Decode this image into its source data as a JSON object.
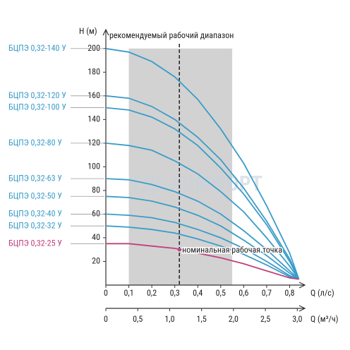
{
  "chart_data": {
    "type": "line",
    "y_label": "H (м)",
    "x_label": "Q (л/с)",
    "x2_label": "Q (м³/ч)",
    "range_label": "рекомендуемый рабочий диапазон",
    "range": [
      0.1,
      0.55
    ],
    "range_color": "#d2d2d2",
    "nominal": {
      "x": 0.32,
      "y": 30,
      "label": "номинальная рабочая точка"
    },
    "watermark": "ГДЕ КОМФОРТ",
    "x": [
      0,
      0.1,
      0.2,
      0.3,
      0.4,
      0.5,
      0.6,
      0.7,
      0.8,
      0.84
    ],
    "series": [
      {
        "name": "БЦПЭ 0,32-140 У",
        "color": "#3a9cc9",
        "values": [
          200,
          197,
          189,
          176,
          157,
          132,
          103,
          67,
          27,
          5
        ]
      },
      {
        "name": "БЦПЭ 0,32-120 У",
        "color": "#3a9cc9",
        "values": [
          160,
          158,
          151,
          140,
          125,
          106,
          82,
          54,
          22,
          5
        ]
      },
      {
        "name": "БЦПЭ 0,32-100 У",
        "color": "#3a9cc9",
        "values": [
          150,
          148,
          142,
          132,
          118,
          99,
          77,
          51,
          20,
          5
        ]
      },
      {
        "name": "БЦПЭ 0,32-80 У",
        "color": "#3a9cc9",
        "values": [
          120,
          118,
          114,
          105,
          94,
          79,
          62,
          40,
          16,
          5
        ]
      },
      {
        "name": "БЦПЭ 0,32-63 У",
        "color": "#3a9cc9",
        "values": [
          90,
          89,
          85,
          79,
          71,
          60,
          46,
          30,
          12,
          5
        ]
      },
      {
        "name": "БЦПЭ 0,32-50 У",
        "color": "#3a9cc9",
        "values": [
          75,
          74,
          71,
          66,
          59,
          50,
          38,
          25,
          10,
          5
        ]
      },
      {
        "name": "БЦПЭ 0,32-40 У",
        "color": "#3a9cc9",
        "values": [
          60,
          59,
          57,
          53,
          47,
          40,
          31,
          20,
          8,
          5
        ]
      },
      {
        "name": "БЦПЭ 0,32-32 У",
        "color": "#3a9cc9",
        "values": [
          50,
          49,
          47,
          44,
          39,
          33,
          26,
          17,
          7,
          5
        ]
      },
      {
        "name": "БЦПЭ 0,32-25 У",
        "color": "#c0407f",
        "values": [
          35,
          35,
          33,
          31,
          27,
          23,
          18,
          12,
          6,
          5
        ]
      }
    ],
    "xlim": [
      0,
      0.86
    ],
    "xticks": [
      0,
      {
        "value": 0.1,
        "label": "0,1"
      },
      {
        "value": 0.2,
        "label": "0,2"
      },
      {
        "value": 0.3,
        "label": "0,3"
      },
      {
        "value": 0.4,
        "label": "0,4"
      },
      {
        "value": 0.5,
        "label": "0,5"
      },
      {
        "value": 0.6,
        "label": "0,6"
      },
      {
        "value": 0.7,
        "label": "0,7"
      },
      {
        "value": 0.8,
        "label": "0,8"
      }
    ],
    "x2lim": [
      0,
      3.096
    ],
    "x2ticks": [
      0,
      {
        "value": 0.5,
        "label": "0,5"
      },
      {
        "value": 1,
        "label": "1,0"
      },
      {
        "value": 1.5,
        "label": "1,5"
      },
      {
        "value": 2,
        "label": "2,0"
      },
      {
        "value": 2.5,
        "label": "2,5"
      },
      {
        "value": 3,
        "label": "3,0"
      }
    ],
    "ylim": [
      0,
      210
    ],
    "yticks": [
      20,
      40,
      60,
      80,
      100,
      120,
      140,
      160,
      180,
      200
    ]
  }
}
